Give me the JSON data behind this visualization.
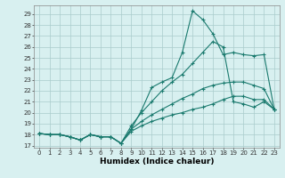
{
  "xlabel": "Humidex (Indice chaleur)",
  "x_values": [
    0,
    1,
    2,
    3,
    4,
    5,
    6,
    7,
    8,
    9,
    10,
    11,
    12,
    13,
    14,
    15,
    16,
    17,
    18,
    19,
    20,
    21,
    22,
    23
  ],
  "series": {
    "line1": [
      18.1,
      18.0,
      18.0,
      17.8,
      17.5,
      18.0,
      17.8,
      17.8,
      17.2,
      18.5,
      20.2,
      22.3,
      22.8,
      23.2,
      25.5,
      29.3,
      28.5,
      27.2,
      25.3,
      25.5,
      25.3,
      25.2,
      25.3,
      20.3
    ],
    "line2": [
      18.1,
      18.0,
      18.0,
      17.8,
      17.5,
      18.0,
      17.8,
      17.8,
      17.2,
      18.8,
      20.0,
      21.0,
      22.0,
      22.8,
      23.5,
      24.5,
      25.5,
      26.5,
      26.0,
      21.0,
      20.8,
      20.5,
      21.0,
      20.3
    ],
    "line3": [
      18.1,
      18.0,
      18.0,
      17.8,
      17.5,
      18.0,
      17.8,
      17.8,
      17.2,
      18.5,
      19.2,
      19.8,
      20.3,
      20.8,
      21.3,
      21.7,
      22.2,
      22.5,
      22.7,
      22.8,
      22.8,
      22.5,
      22.2,
      20.3
    ],
    "line4": [
      18.1,
      18.0,
      18.0,
      17.8,
      17.5,
      18.0,
      17.8,
      17.8,
      17.2,
      18.3,
      18.8,
      19.2,
      19.5,
      19.8,
      20.0,
      20.3,
      20.5,
      20.8,
      21.2,
      21.5,
      21.5,
      21.2,
      21.2,
      20.3
    ]
  },
  "ylim_min": 16.8,
  "ylim_max": 29.8,
  "yticks": [
    17,
    18,
    19,
    20,
    21,
    22,
    23,
    24,
    25,
    26,
    27,
    28,
    29
  ],
  "xlim_min": -0.5,
  "xlim_max": 23.5,
  "xticks": [
    0,
    1,
    2,
    3,
    4,
    5,
    6,
    7,
    8,
    9,
    10,
    11,
    12,
    13,
    14,
    15,
    16,
    17,
    18,
    19,
    20,
    21,
    22,
    23
  ],
  "line_color": "#1a7a6e",
  "bg_color": "#d8f0f0",
  "grid_color": "#aacccc",
  "marker": "+",
  "marker_size": 3,
  "linewidth": 0.8,
  "tick_fontsize": 5.0,
  "label_fontsize": 6.5
}
